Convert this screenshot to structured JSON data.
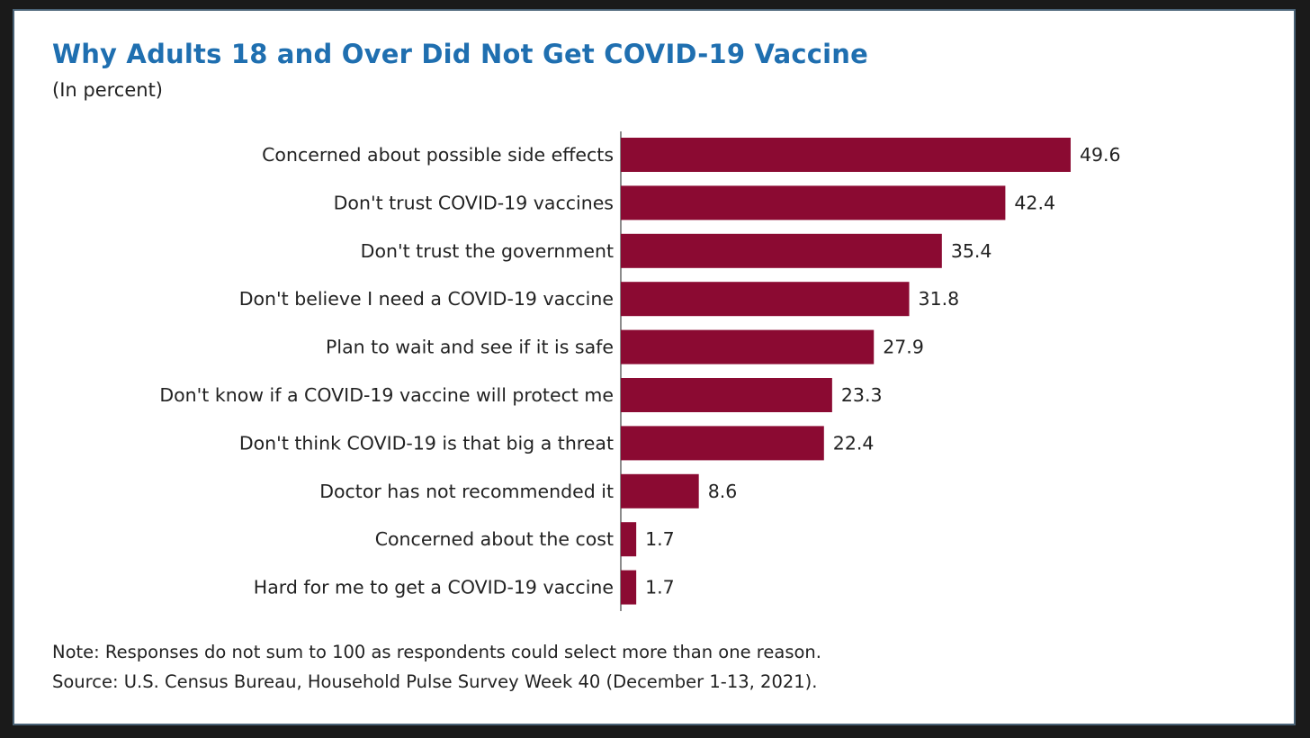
{
  "chart_data": {
    "type": "bar",
    "orientation": "horizontal",
    "title": "Why Adults 18 and Over Did Not Get COVID-19 Vaccine",
    "subtitle": "(In percent)",
    "categories": [
      "Concerned about possible side effects",
      "Don't trust COVID-19 vaccines",
      "Don't trust the government",
      "Don't believe I need a COVID-19 vaccine",
      "Plan to wait and see if it is safe",
      "Don't know if a COVID-19 vaccine will protect me",
      "Don't think COVID-19 is that big a threat",
      "Doctor has not recommended it",
      "Concerned about the cost",
      "Hard for me to get a COVID-19 vaccine"
    ],
    "values": [
      49.6,
      42.4,
      35.4,
      31.8,
      27.9,
      23.3,
      22.4,
      8.6,
      1.7,
      1.7
    ],
    "value_labels": [
      "49.6",
      "42.4",
      "35.4",
      "31.8",
      "27.9",
      "23.3",
      "22.4",
      "8.6",
      "1.7",
      "1.7"
    ],
    "xlabel": "",
    "ylabel": "",
    "xlim": [
      0,
      50
    ],
    "grid": false,
    "legend": "none",
    "bar_color": "#8b0a32",
    "title_color": "#1f6fb0"
  },
  "note": "Note: Responses do not sum to 100 as respondents could select more than one reason.",
  "source": "Source: U.S. Census Bureau, Household Pulse Survey Week 40 (December 1-13, 2021)."
}
